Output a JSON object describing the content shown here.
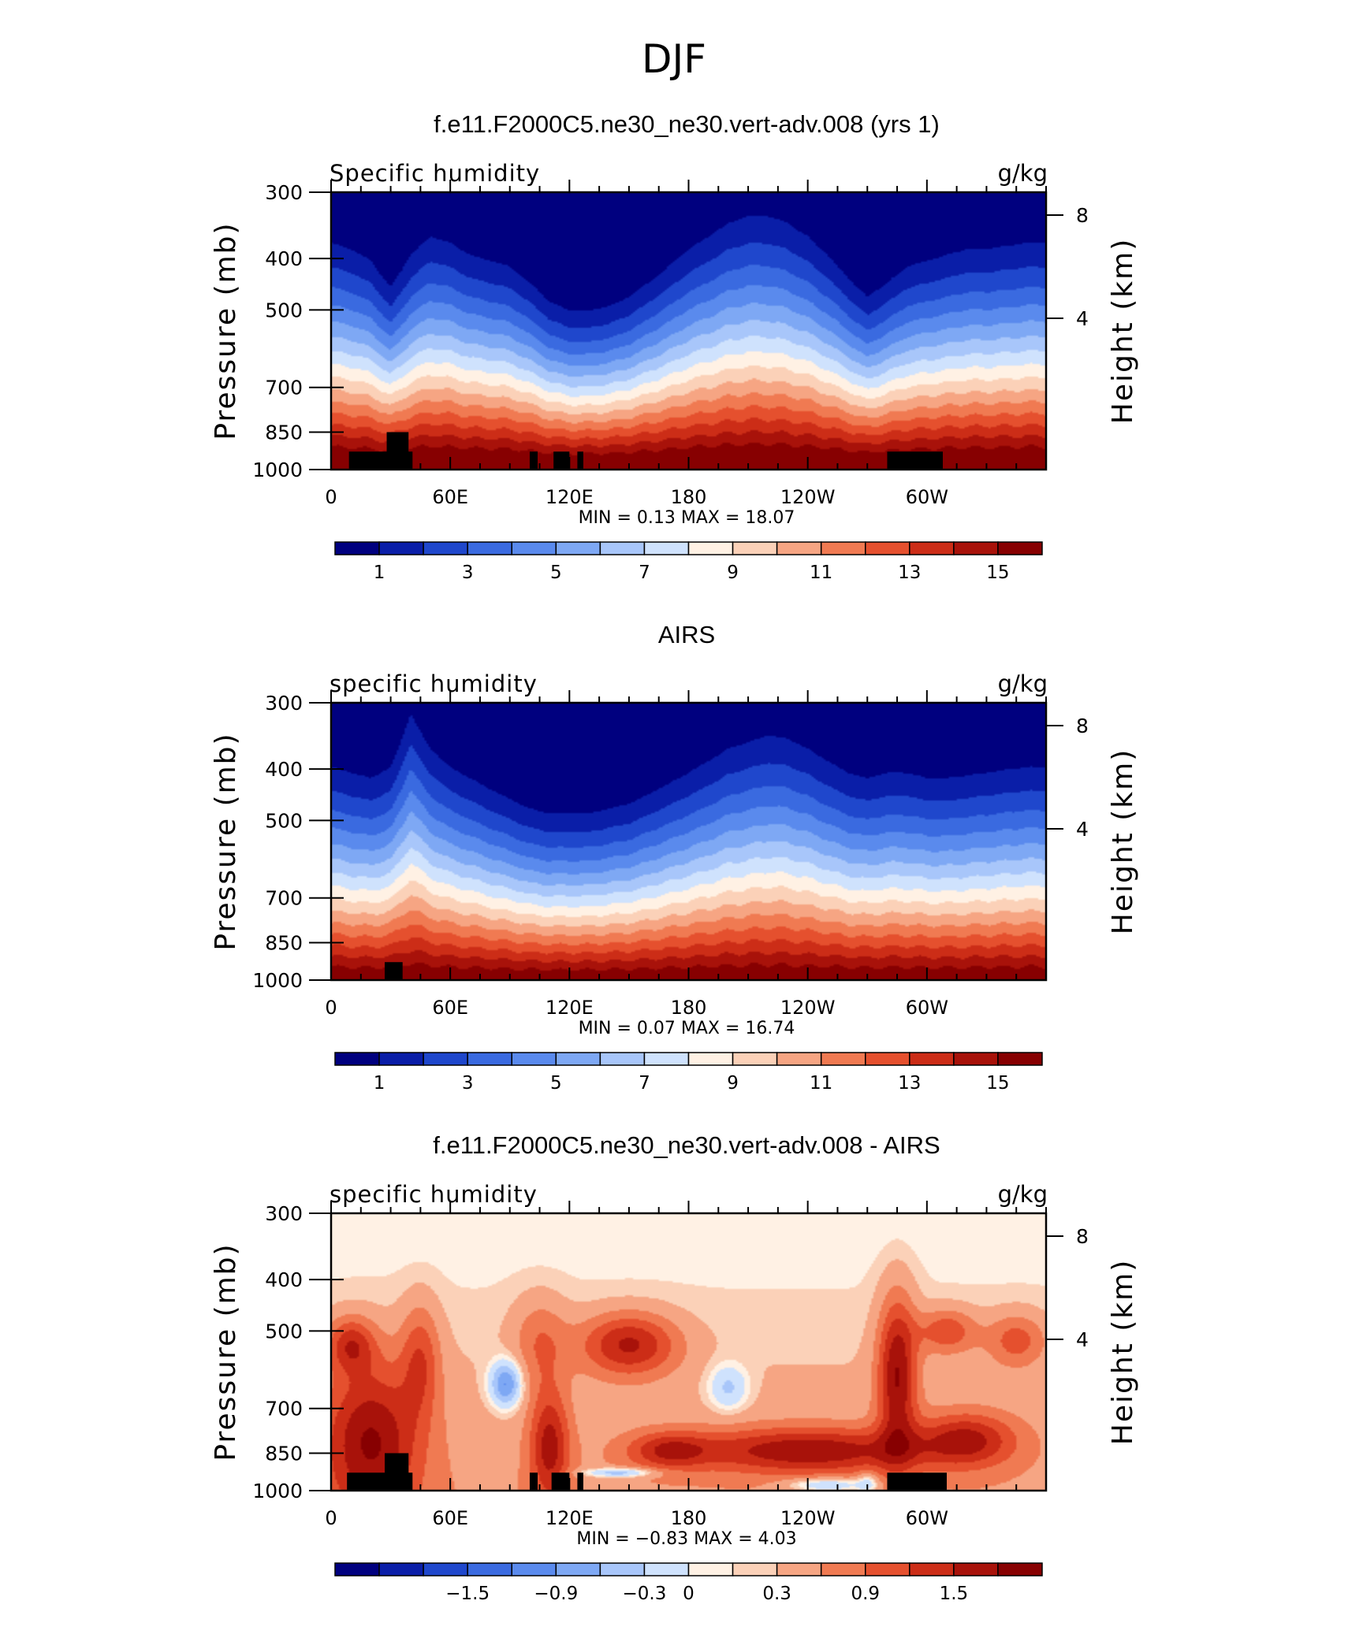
{
  "figure": {
    "title": "DJF"
  },
  "chart_data": [
    {
      "type": "heatmap",
      "title": "f.e11.F2000C5.ne30_ne30.vert-adv.008 (yrs 1)",
      "left_label": "Specific humidity",
      "right_label": "g/kg",
      "ylabel": "Pressure (mb)",
      "y2label": "Height (km)",
      "x_ticks": [
        "0",
        "60E",
        "120E",
        "180",
        "120W",
        "60W"
      ],
      "x_tick_positions": [
        0,
        60,
        120,
        180,
        240,
        300
      ],
      "xlim": [
        0,
        360
      ],
      "y_ticks": [
        "300",
        "400",
        "500",
        "700",
        "850",
        "1000"
      ],
      "y_tick_positions": [
        300,
        400,
        500,
        700,
        850,
        1000
      ],
      "ylim": [
        1000,
        300
      ],
      "y_scale": "log-pressure",
      "y2_ticks": [
        "8",
        "4"
      ],
      "y2_tick_positions": [
        8,
        4
      ],
      "stats_text": "MIN =    0.13   MAX =   18.07",
      "min": 0.13,
      "max": 18.07,
      "colorbar": {
        "levels": [
          0,
          1,
          2,
          3,
          4,
          5,
          6,
          7,
          8,
          9,
          10,
          11,
          12,
          13,
          14,
          15,
          16
        ],
        "labels": [
          "1",
          "3",
          "5",
          "7",
          "9",
          "11",
          "13",
          "15"
        ],
        "label_indices": [
          1,
          3,
          5,
          7,
          9,
          11,
          13,
          15
        ]
      },
      "field": {
        "description_free": true,
        "surface_value": 17.2,
        "scale_height_p": [
          [
            0,
            310
          ],
          [
            10,
            320
          ],
          [
            20,
            340
          ],
          [
            30,
            390
          ],
          [
            40,
            330
          ],
          [
            50,
            300
          ],
          [
            60,
            310
          ],
          [
            70,
            330
          ],
          [
            80,
            340
          ],
          [
            90,
            350
          ],
          [
            100,
            380
          ],
          [
            110,
            420
          ],
          [
            120,
            440
          ],
          [
            130,
            440
          ],
          [
            140,
            430
          ],
          [
            150,
            410
          ],
          [
            160,
            380
          ],
          [
            170,
            350
          ],
          [
            180,
            320
          ],
          [
            190,
            300
          ],
          [
            200,
            280
          ],
          [
            210,
            270
          ],
          [
            220,
            270
          ],
          [
            230,
            280
          ],
          [
            240,
            300
          ],
          [
            250,
            330
          ],
          [
            260,
            370
          ],
          [
            270,
            410
          ],
          [
            280,
            380
          ],
          [
            290,
            350
          ],
          [
            300,
            340
          ],
          [
            310,
            330
          ],
          [
            320,
            320
          ],
          [
            330,
            320
          ],
          [
            340,
            315
          ],
          [
            350,
            310
          ],
          [
            360,
            310
          ]
        ],
        "surface_rise": []
      },
      "topography": [
        {
          "lon0": 9,
          "lon1": 41,
          "p": 925
        },
        {
          "lon0": 28,
          "lon1": 39,
          "p": 850
        },
        {
          "lon0": 100,
          "lon1": 104,
          "p": 925
        },
        {
          "lon0": 112,
          "lon1": 120,
          "p": 925
        },
        {
          "lon0": 124,
          "lon1": 127,
          "p": 925
        },
        {
          "lon0": 280,
          "lon1": 308,
          "p": 925
        }
      ]
    },
    {
      "type": "heatmap",
      "title": "AIRS",
      "left_label": "specific humidity",
      "right_label": "g/kg",
      "ylabel": "Pressure (mb)",
      "y2label": "Height (km)",
      "x_ticks": [
        "0",
        "60E",
        "120E",
        "180",
        "120W",
        "60W"
      ],
      "x_tick_positions": [
        0,
        60,
        120,
        180,
        240,
        300
      ],
      "xlim": [
        0,
        360
      ],
      "y_ticks": [
        "300",
        "400",
        "500",
        "700",
        "850",
        "1000"
      ],
      "y_tick_positions": [
        300,
        400,
        500,
        700,
        850,
        1000
      ],
      "ylim": [
        1000,
        300
      ],
      "y_scale": "log-pressure",
      "y2_ticks": [
        "8",
        "4"
      ],
      "y2_tick_positions": [
        8,
        4
      ],
      "stats_text": "MIN =    0.07   MAX =   16.74",
      "min": 0.07,
      "max": 16.74,
      "colorbar": {
        "levels": [
          0,
          1,
          2,
          3,
          4,
          5,
          6,
          7,
          8,
          9,
          10,
          11,
          12,
          13,
          14,
          15,
          16
        ],
        "labels": [
          "1",
          "3",
          "5",
          "7",
          "9",
          "11",
          "13",
          "15"
        ],
        "label_indices": [
          1,
          3,
          5,
          7,
          9,
          11,
          13,
          15
        ]
      },
      "field": {
        "surface_value": 16.3,
        "scale_height_p": [
          [
            0,
            330
          ],
          [
            10,
            340
          ],
          [
            20,
            350
          ],
          [
            30,
            330
          ],
          [
            40,
            250
          ],
          [
            50,
            300
          ],
          [
            60,
            330
          ],
          [
            70,
            350
          ],
          [
            80,
            370
          ],
          [
            90,
            390
          ],
          [
            100,
            410
          ],
          [
            110,
            420
          ],
          [
            120,
            420
          ],
          [
            130,
            420
          ],
          [
            140,
            410
          ],
          [
            150,
            400
          ],
          [
            160,
            380
          ],
          [
            170,
            360
          ],
          [
            180,
            340
          ],
          [
            190,
            320
          ],
          [
            200,
            300
          ],
          [
            210,
            290
          ],
          [
            220,
            280
          ],
          [
            230,
            285
          ],
          [
            240,
            300
          ],
          [
            250,
            320
          ],
          [
            260,
            340
          ],
          [
            270,
            350
          ],
          [
            280,
            340
          ],
          [
            290,
            340
          ],
          [
            300,
            350
          ],
          [
            310,
            350
          ],
          [
            320,
            345
          ],
          [
            330,
            340
          ],
          [
            340,
            335
          ],
          [
            350,
            330
          ],
          [
            360,
            330
          ]
        ],
        "surface_rise": []
      },
      "topography": [
        {
          "lon0": 27,
          "lon1": 36,
          "p": 925
        }
      ]
    },
    {
      "type": "heatmap",
      "title": "f.e11.F2000C5.ne30_ne30.vert-adv.008 - AIRS",
      "left_label": "specific humidity",
      "right_label": "g/kg",
      "ylabel": "Pressure (mb)",
      "y2label": "Height (km)",
      "x_ticks": [
        "0",
        "60E",
        "120E",
        "180",
        "120W",
        "60W"
      ],
      "x_tick_positions": [
        0,
        60,
        120,
        180,
        240,
        300
      ],
      "xlim": [
        0,
        360
      ],
      "y_ticks": [
        "300",
        "400",
        "500",
        "700",
        "850",
        "1000"
      ],
      "y_tick_positions": [
        300,
        400,
        500,
        700,
        850,
        1000
      ],
      "ylim": [
        1000,
        300
      ],
      "y_scale": "log-pressure",
      "y2_ticks": [
        "8",
        "4"
      ],
      "y2_tick_positions": [
        8,
        4
      ],
      "stats_text": "MIN =   −0.83   MAX =    4.03",
      "min": -0.83,
      "max": 4.03,
      "colorbar": {
        "levels": [
          -2.4,
          -2.1,
          -1.8,
          -1.5,
          -1.2,
          -0.9,
          -0.6,
          -0.3,
          0,
          0.15,
          0.3,
          0.6,
          0.9,
          1.2,
          1.5,
          1.8,
          2.1
        ],
        "labels": [
          "−1.5",
          "−0.9",
          "−0.3",
          "0",
          "0.3",
          "0.9",
          "1.5"
        ],
        "label_indices": [
          3,
          5,
          7,
          8,
          10,
          12,
          14
        ]
      },
      "diff_features": [
        {
          "lon": 20,
          "p": 800,
          "slon": 25,
          "slogp": 0.35,
          "amp": 1.4
        },
        {
          "lon": 10,
          "p": 530,
          "slon": 12,
          "slogp": 0.12,
          "amp": 1.0
        },
        {
          "lon": 45,
          "p": 560,
          "slon": 10,
          "slogp": 0.25,
          "amp": 0.8
        },
        {
          "lon": 88,
          "p": 630,
          "slon": 8,
          "slogp": 0.1,
          "amp": -1.3
        },
        {
          "lon": 150,
          "p": 530,
          "slon": 25,
          "slogp": 0.14,
          "amp": 1.3
        },
        {
          "lon": 105,
          "p": 520,
          "slon": 14,
          "slogp": 0.2,
          "amp": 0.6
        },
        {
          "lon": 200,
          "p": 640,
          "slon": 10,
          "slogp": 0.1,
          "amp": -0.7
        },
        {
          "lon": 240,
          "p": 840,
          "slon": 60,
          "slogp": 0.1,
          "amp": 1.3
        },
        {
          "lon": 170,
          "p": 840,
          "slon": 20,
          "slogp": 0.08,
          "amp": 0.9
        },
        {
          "lon": 285,
          "p": 600,
          "slon": 10,
          "slogp": 0.35,
          "amp": 1.5
        },
        {
          "lon": 310,
          "p": 500,
          "slon": 15,
          "slogp": 0.1,
          "amp": 0.9
        },
        {
          "lon": 345,
          "p": 520,
          "slon": 15,
          "slogp": 0.12,
          "amp": 0.8
        },
        {
          "lon": 320,
          "p": 800,
          "slon": 25,
          "slogp": 0.12,
          "amp": 1.1
        },
        {
          "lon": 110,
          "p": 820,
          "slon": 10,
          "slogp": 0.25,
          "amp": 1.2
        },
        {
          "lon": 145,
          "p": 925,
          "slon": 18,
          "slogp": 0.02,
          "amp": -1.0
        },
        {
          "lon": 250,
          "p": 975,
          "slon": 20,
          "slogp": 0.03,
          "amp": -0.9
        },
        {
          "lon": 270,
          "p": 965,
          "slon": 5,
          "slogp": 0.05,
          "amp": -0.6
        }
      ],
      "diff_base": 0.55,
      "topography": [
        {
          "lon0": 8,
          "lon1": 41,
          "p": 925
        },
        {
          "lon0": 27,
          "lon1": 39,
          "p": 850
        },
        {
          "lon0": 100,
          "lon1": 104,
          "p": 925
        },
        {
          "lon0": 111,
          "lon1": 120,
          "p": 925
        },
        {
          "lon0": 124,
          "lon1": 127,
          "p": 925
        },
        {
          "lon0": 280,
          "lon1": 310,
          "p": 925
        }
      ]
    }
  ],
  "colors": {
    "palette": [
      "#00007f",
      "#0a1ea8",
      "#1f47cc",
      "#3a6ae0",
      "#5a8aed",
      "#7ea8f4",
      "#a8c6fa",
      "#cfe2fd",
      "#fff1e4",
      "#fbd1b8",
      "#f6a583",
      "#f07a52",
      "#e5502e",
      "#cc2d17",
      "#a8120a",
      "#870001"
    ]
  }
}
